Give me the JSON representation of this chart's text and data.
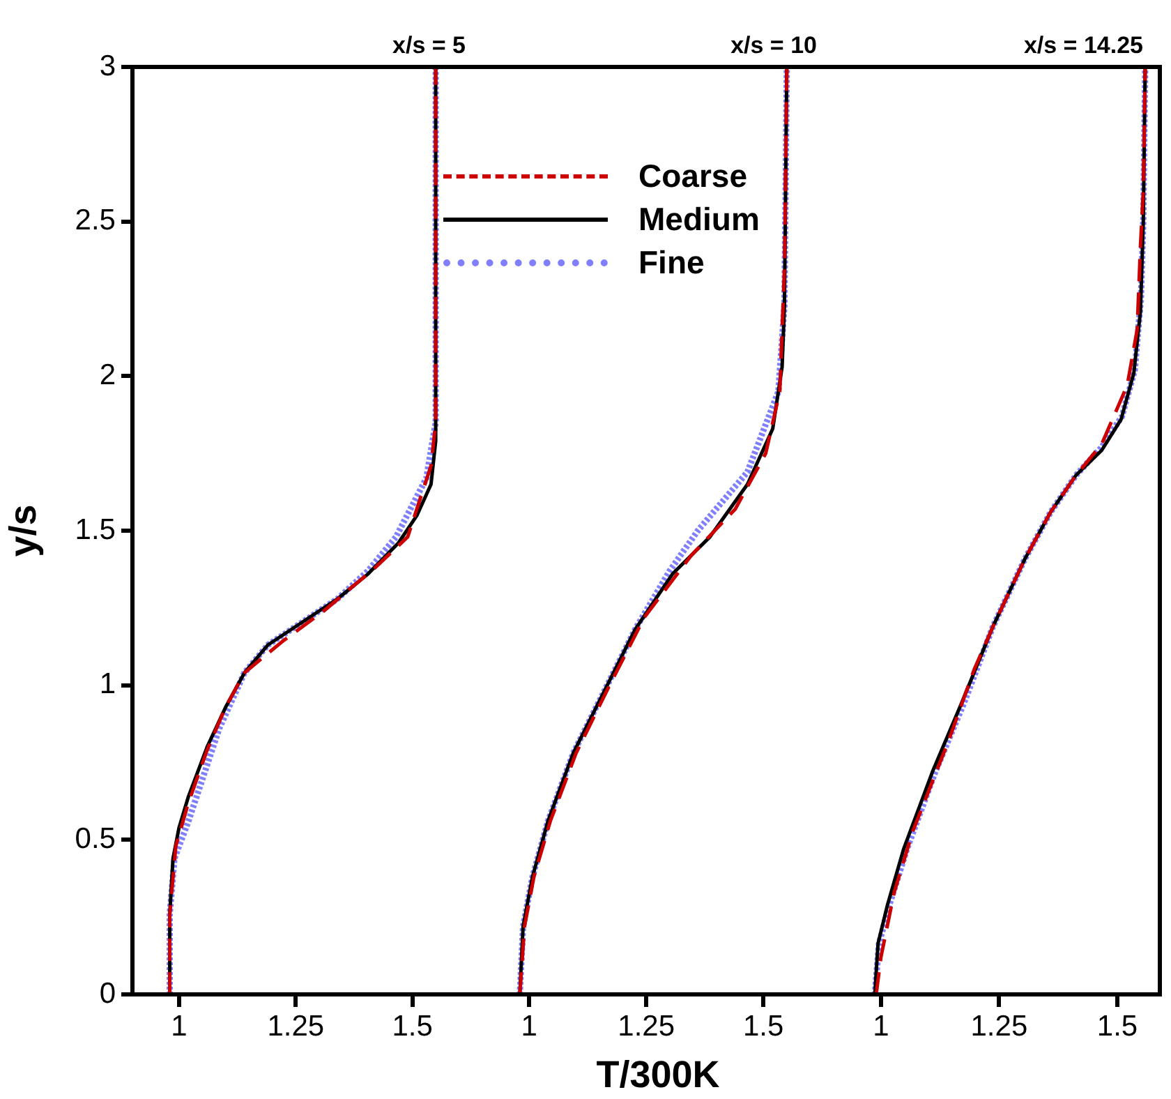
{
  "chart_data": [
    {
      "type": "line",
      "title": "x/s = 5",
      "ylabel": "y/s",
      "xlim": [
        0.9,
        1.65
      ],
      "xticks": [
        1,
        1.25,
        1.5
      ],
      "ylim": [
        0,
        3
      ],
      "yticks": [
        0,
        0.5,
        1,
        1.5,
        2,
        2.5,
        3
      ],
      "legend": "top right",
      "series": [
        {
          "name": "Coarse",
          "color": "#cc0000",
          "line_style": "dashed",
          "x": [
            0.98,
            0.98,
            0.993,
            1.02,
            1.06,
            1.1,
            1.14,
            1.22,
            1.31,
            1.42,
            1.49,
            1.54,
            1.55,
            1.55
          ],
          "values": [
            0,
            0.26,
            0.48,
            0.62,
            0.79,
            0.93,
            1.04,
            1.14,
            1.24,
            1.38,
            1.48,
            1.71,
            1.85,
            3
          ]
        },
        {
          "name": "Medium",
          "color": "#000000",
          "line_style": "solid",
          "x": [
            0.98,
            0.98,
            0.987,
            1.0,
            1.02,
            1.06,
            1.1,
            1.14,
            1.19,
            1.26,
            1.34,
            1.405,
            1.47,
            1.51,
            1.54,
            1.55,
            1.55
          ],
          "values": [
            0,
            0.26,
            0.44,
            0.54,
            0.64,
            0.8,
            0.93,
            1.04,
            1.13,
            1.2,
            1.28,
            1.36,
            1.46,
            1.55,
            1.65,
            1.79,
            3
          ]
        },
        {
          "name": "Fine",
          "color": "#8080ff",
          "line_style": "dotted",
          "x": [
            0.98,
            0.98,
            0.99,
            1.02,
            1.086,
            1.14,
            1.19,
            1.26,
            1.34,
            1.405,
            1.465,
            1.53,
            1.55,
            1.55
          ],
          "values": [
            0,
            0.26,
            0.44,
            0.56,
            0.86,
            1.04,
            1.13,
            1.2,
            1.28,
            1.37,
            1.48,
            1.67,
            1.85,
            3
          ]
        }
      ]
    },
    {
      "type": "line",
      "title": "x/s = 10",
      "xlabel": "T/300K",
      "xlim": [
        0.9,
        1.65
      ],
      "xticks": [
        1,
        1.25,
        1.5
      ],
      "ylim": [
        0,
        3
      ],
      "yticks": [
        0,
        0.5,
        1,
        1.5,
        2,
        2.5,
        3
      ],
      "tick_labels": "x",
      "series": [
        {
          "color": "#cc0000",
          "line_style": "dashed",
          "x": [
            0.98,
            0.99,
            1.01,
            1.045,
            1.1,
            1.165,
            1.246,
            1.346,
            1.44,
            1.505,
            1.535,
            1.545,
            1.55
          ],
          "values": [
            0,
            0.22,
            0.38,
            0.56,
            0.78,
            0.98,
            1.22,
            1.42,
            1.57,
            1.75,
            1.95,
            2.35,
            3
          ]
        },
        {
          "color": "#000000",
          "line_style": "solid",
          "x": [
            0.98,
            0.987,
            1.007,
            1.04,
            1.094,
            1.16,
            1.226,
            1.306,
            1.386,
            1.466,
            1.52,
            1.54,
            1.545,
            1.55
          ],
          "values": [
            0,
            0.22,
            0.38,
            0.56,
            0.78,
            0.98,
            1.18,
            1.36,
            1.48,
            1.65,
            1.83,
            2.03,
            2.23,
            3
          ]
        },
        {
          "color": "#8080ff",
          "line_style": "dotted",
          "x": [
            0.98,
            0.987,
            1.007,
            1.04,
            1.094,
            1.16,
            1.226,
            1.3,
            1.36,
            1.466,
            1.532,
            1.545,
            1.55
          ],
          "values": [
            0,
            0.22,
            0.38,
            0.56,
            0.78,
            0.98,
            1.18,
            1.37,
            1.5,
            1.69,
            1.95,
            2.23,
            3
          ]
        }
      ]
    },
    {
      "type": "line",
      "title": "x/s = 14.25",
      "xlim": [
        0.9,
        1.59
      ],
      "xticks": [
        1,
        1.25,
        1.5
      ],
      "ylim": [
        0,
        3
      ],
      "yticks": [
        0,
        0.5,
        1,
        1.5,
        2,
        2.5,
        3
      ],
      "tick_labels": "x",
      "series": [
        {
          "color": "#cc0000",
          "line_style": "dashed",
          "x": [
            0.99,
            1.0,
            1.028,
            1.068,
            1.143,
            1.197,
            1.237,
            1.305,
            1.359,
            1.413,
            1.467,
            1.521,
            1.542,
            1.549,
            1.555,
            1.559
          ],
          "values": [
            0,
            0.12,
            0.33,
            0.53,
            0.82,
            1.05,
            1.19,
            1.41,
            1.56,
            1.68,
            1.78,
            1.97,
            2.15,
            2.42,
            2.6,
            3
          ]
        },
        {
          "color": "#000000",
          "line_style": "solid",
          "x": [
            0.987,
            0.994,
            1.014,
            1.048,
            1.109,
            1.17,
            1.237,
            1.305,
            1.359,
            1.413,
            1.467,
            1.508,
            1.535,
            1.549,
            1.555,
            1.559
          ],
          "values": [
            0,
            0.165,
            0.29,
            0.47,
            0.72,
            0.94,
            1.19,
            1.41,
            1.56,
            1.68,
            1.76,
            1.86,
            2.01,
            2.21,
            2.5,
            3
          ]
        },
        {
          "color": "#8080ff",
          "line_style": "dotted",
          "x": [
            0.987,
            0.996,
            1.018,
            1.055,
            1.115,
            1.175,
            1.237,
            1.305,
            1.359,
            1.413,
            1.467,
            1.51,
            1.537,
            1.55,
            1.555,
            1.559
          ],
          "values": [
            0,
            0.165,
            0.29,
            0.47,
            0.72,
            0.94,
            1.19,
            1.41,
            1.56,
            1.68,
            1.77,
            1.87,
            2.02,
            2.25,
            2.5,
            3
          ]
        }
      ]
    }
  ]
}
